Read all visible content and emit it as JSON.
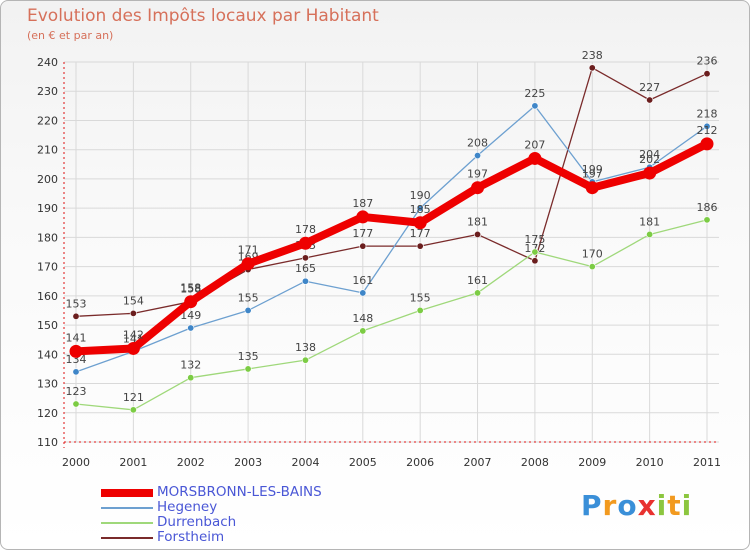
{
  "header": {
    "title": "Evolution des Impôts locaux par Habitant",
    "subtitle": "(en € et par an)"
  },
  "colors": {
    "title": "#d6705a",
    "grid": "#d9d9d9",
    "legend_text": "#4a57d6"
  },
  "chart_data": {
    "type": "line",
    "title": "Evolution des Impôts locaux par Habitant",
    "subtitle": "(en € et par an)",
    "xlabel": "",
    "ylabel": "",
    "ylim": [
      110,
      240
    ],
    "grid": true,
    "legend_position": "bottom-left",
    "categories": [
      "2000",
      "2001",
      "2002",
      "2003",
      "2004",
      "2005",
      "2006",
      "2007",
      "2008",
      "2009",
      "2010",
      "2011"
    ],
    "yticks": [
      110,
      120,
      130,
      140,
      150,
      160,
      170,
      180,
      190,
      200,
      210,
      220,
      230,
      240
    ],
    "series": [
      {
        "name": "Forstheim",
        "color": "#7a2b2b",
        "marker": "#6b1e1e",
        "width": 1.3,
        "values": [
          153,
          154,
          158,
          169,
          173,
          177,
          177,
          181,
          172,
          238,
          227,
          236
        ]
      },
      {
        "name": "Durrenbach",
        "color": "#9fd87a",
        "marker": "#7ccc44",
        "width": 1.3,
        "values": [
          123,
          121,
          132,
          135,
          138,
          148,
          155,
          161,
          175,
          170,
          181,
          186
        ]
      },
      {
        "name": "Hegeney",
        "color": "#6da0d0",
        "marker": "#3f86c8",
        "width": 1.3,
        "values": [
          134,
          141,
          149,
          155,
          165,
          161,
          190,
          208,
          225,
          199,
          204,
          218
        ]
      },
      {
        "name": "MORSBRONN-LES-BAINS",
        "color": "#ee0000",
        "marker": "#ee0000",
        "width": 8,
        "values": [
          141,
          142,
          158,
          171,
          178,
          187,
          185,
          197,
          207,
          197,
          202,
          212
        ]
      }
    ]
  },
  "legend": {
    "items": [
      {
        "label": "MORSBRONN-LES-BAINS",
        "color": "#ee0000"
      },
      {
        "label": "Hegeney",
        "color": "#6da0d0"
      },
      {
        "label": "Durrenbach",
        "color": "#9fd87a"
      },
      {
        "label": "Forstheim",
        "color": "#7a2b2b"
      }
    ]
  },
  "logo": {
    "letters": [
      {
        "ch": "P",
        "color": "#3a8fd8"
      },
      {
        "ch": "r",
        "color": "#f29a1f"
      },
      {
        "ch": "o",
        "color": "#3a8fd8"
      },
      {
        "ch": "x",
        "color": "#e8312f"
      },
      {
        "ch": "i",
        "color": "#8cc63f"
      },
      {
        "ch": "t",
        "color": "#f29a1f"
      },
      {
        "ch": "i",
        "color": "#8cc63f"
      }
    ]
  }
}
